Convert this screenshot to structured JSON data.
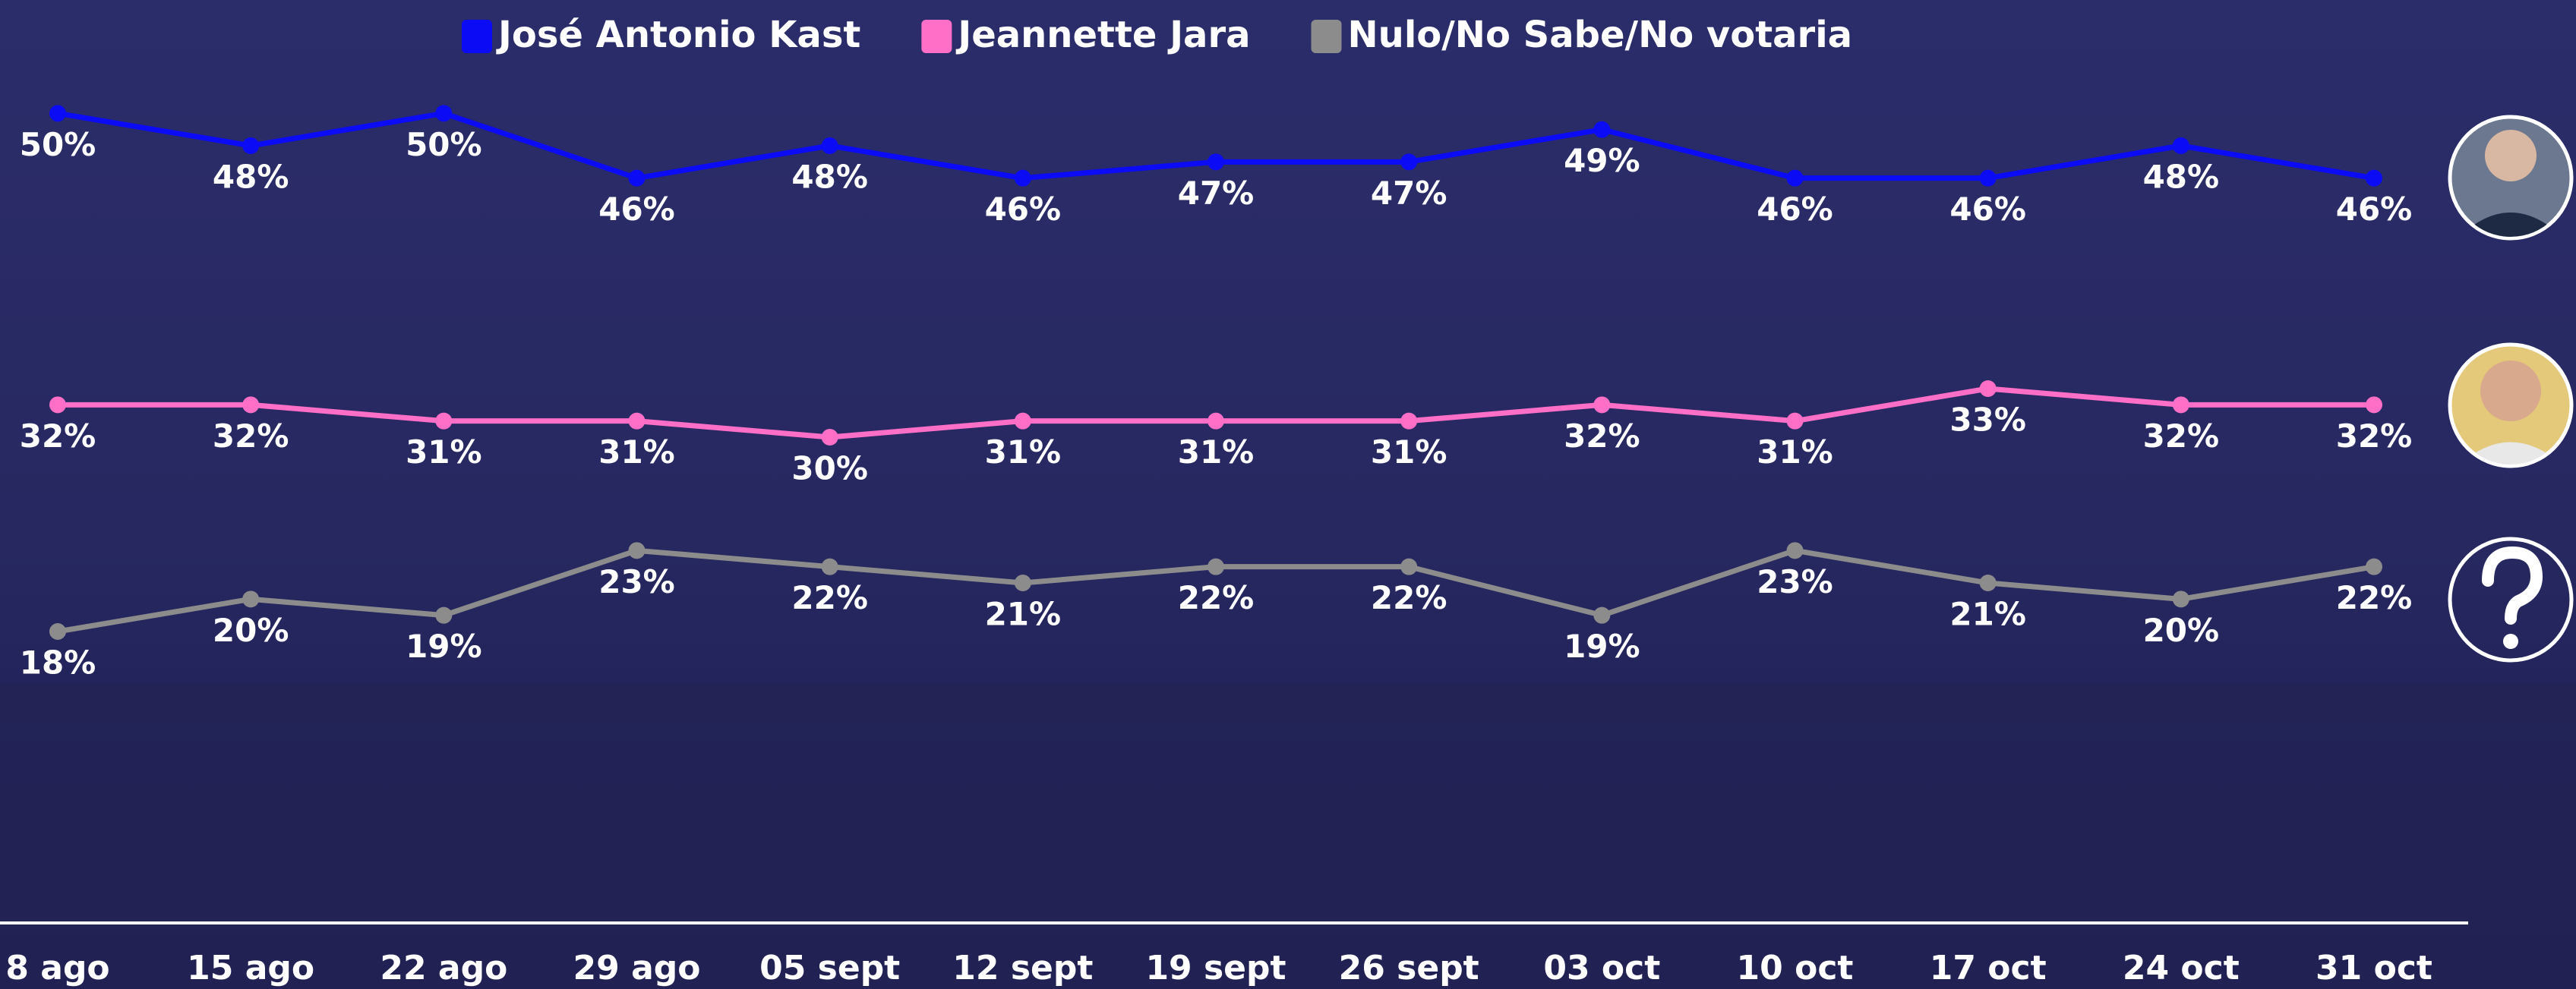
{
  "chart_data": {
    "type": "line",
    "categories": [
      "8 ago",
      "15 ago",
      "22 ago",
      "29 ago",
      "05 sept",
      "12 sept",
      "19 sept",
      "26 sept",
      "03 oct",
      "10 oct",
      "17 oct",
      "24 oct",
      "31 oct"
    ],
    "series": [
      {
        "name": "José Antonio Kast",
        "color": "#0b0bf5",
        "values": [
          50,
          48,
          50,
          46,
          48,
          46,
          47,
          47,
          49,
          46,
          46,
          48,
          46
        ],
        "value_labels": [
          "50%",
          "48%",
          "50%",
          "46%",
          "48%",
          "46%",
          "47%",
          "47%",
          "49%",
          "46%",
          "46%",
          "48%",
          "46%"
        ]
      },
      {
        "name": "Jeannette Jara",
        "color": "#ff6ec7",
        "values": [
          32,
          32,
          31,
          31,
          30,
          31,
          31,
          31,
          32,
          31,
          33,
          32,
          32
        ],
        "value_labels": [
          "32%",
          "32%",
          "31%",
          "31%",
          "30%",
          "31%",
          "31%",
          "31%",
          "32%",
          "31%",
          "33%",
          "32%",
          "32%"
        ]
      },
      {
        "name": "Nulo/No Sabe/No votaria",
        "color": "#8c8c8c",
        "values": [
          18,
          20,
          19,
          23,
          22,
          21,
          22,
          22,
          19,
          23,
          21,
          20,
          22
        ],
        "value_labels": [
          "18%",
          "20%",
          "19%",
          "23%",
          "22%",
          "21%",
          "22%",
          "22%",
          "19%",
          "23%",
          "21%",
          "20%",
          "22%"
        ]
      }
    ],
    "ylim": [
      0,
      57
    ],
    "legend": "top"
  }
}
